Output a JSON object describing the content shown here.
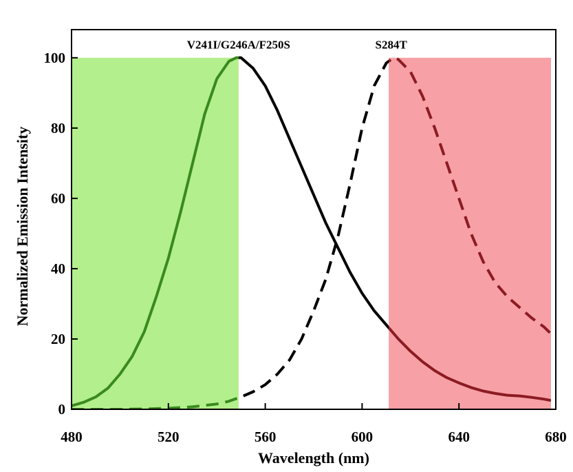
{
  "chart_data": {
    "type": "line",
    "xlabel": "Wavelength (nm)",
    "ylabel": "Normalized Emission Intensity",
    "xlim": [
      480,
      680
    ],
    "ylim": [
      0,
      108
    ],
    "xticks": [
      480,
      520,
      560,
      600,
      640,
      680
    ],
    "yticks": [
      0,
      20,
      40,
      60,
      80,
      100
    ],
    "grid": false,
    "legend": "none",
    "bands": [
      {
        "x_from": 480,
        "x_to": 549,
        "color": "#b3ef8c"
      },
      {
        "x_from": 611,
        "x_to": 678,
        "color": "#f7a0a5"
      }
    ],
    "series": [
      {
        "name": "V241I/G246A/F250S",
        "style": "solid",
        "color": "#000000",
        "color_in_band_1": "#3a8a1e",
        "color_in_band_2": "#8b1b22",
        "label_at": [
          549,
          101
        ],
        "x": [
          480,
          485,
          490,
          495,
          500,
          505,
          510,
          515,
          520,
          525,
          530,
          535,
          540,
          545,
          548,
          550,
          555,
          560,
          565,
          570,
          575,
          580,
          585,
          590,
          595,
          600,
          605,
          610,
          615,
          620,
          625,
          630,
          635,
          640,
          645,
          650,
          655,
          660,
          665,
          670,
          675,
          678
        ],
        "y": [
          1,
          2,
          3.5,
          6,
          10,
          15,
          22,
          32,
          43,
          56,
          70,
          84,
          94,
          99,
          100,
          100,
          97,
          92,
          85,
          77,
          69,
          61,
          53,
          46,
          39,
          33,
          28,
          24,
          20,
          16.5,
          13.5,
          11,
          9,
          7.5,
          6.2,
          5.2,
          4.5,
          4,
          3.8,
          3.4,
          2.9,
          2.5
        ]
      },
      {
        "name": "S284T",
        "style": "dashed",
        "color": "#000000",
        "color_in_band_1": "#3a8a1e",
        "color_in_band_2": "#8b1b22",
        "label_at": [
          612,
          101
        ],
        "x": [
          480,
          490,
          500,
          510,
          520,
          530,
          540,
          545,
          550,
          555,
          560,
          565,
          570,
          575,
          580,
          585,
          590,
          595,
          600,
          605,
          610,
          613,
          615,
          620,
          625,
          630,
          635,
          640,
          645,
          650,
          655,
          660,
          665,
          670,
          675,
          678
        ],
        "y": [
          0,
          0,
          0,
          0.1,
          0.3,
          0.7,
          1.5,
          2.3,
          3.5,
          5,
          7,
          10,
          14,
          20,
          28,
          37,
          49,
          64,
          80,
          92,
          98.5,
          100,
          99.5,
          96,
          89,
          80,
          70,
          60,
          50,
          42,
          36,
          32,
          29,
          26,
          23.5,
          21.5
        ]
      }
    ]
  }
}
